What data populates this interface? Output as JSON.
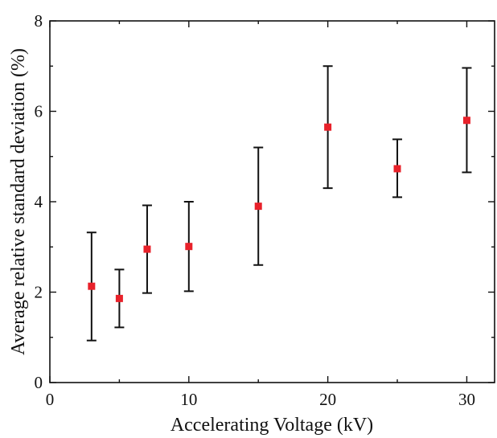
{
  "chart_data": {
    "type": "scatter",
    "title": "",
    "xlabel": "Accelerating Voltage (kV)",
    "ylabel": "Average relative standard deviation (%)",
    "xlim": [
      0,
      32
    ],
    "ylim": [
      0,
      8
    ],
    "x_ticks": [
      0,
      10,
      20,
      30
    ],
    "y_ticks": [
      0,
      2,
      4,
      6,
      8
    ],
    "grid": false,
    "legend": "none",
    "marker_color": "#e8212a",
    "errorbar_color": "#111111",
    "series": [
      {
        "x": [
          3,
          5,
          7,
          10,
          15,
          20,
          25,
          30
        ],
        "y": [
          2.13,
          1.86,
          2.95,
          3.01,
          3.9,
          5.65,
          4.73,
          5.8
        ],
        "y_err_low": [
          0.93,
          1.22,
          1.98,
          2.02,
          2.6,
          4.3,
          4.1,
          4.65
        ],
        "y_err_high": [
          3.32,
          2.5,
          3.92,
          4.0,
          5.2,
          7.0,
          5.38,
          6.96
        ]
      }
    ]
  }
}
